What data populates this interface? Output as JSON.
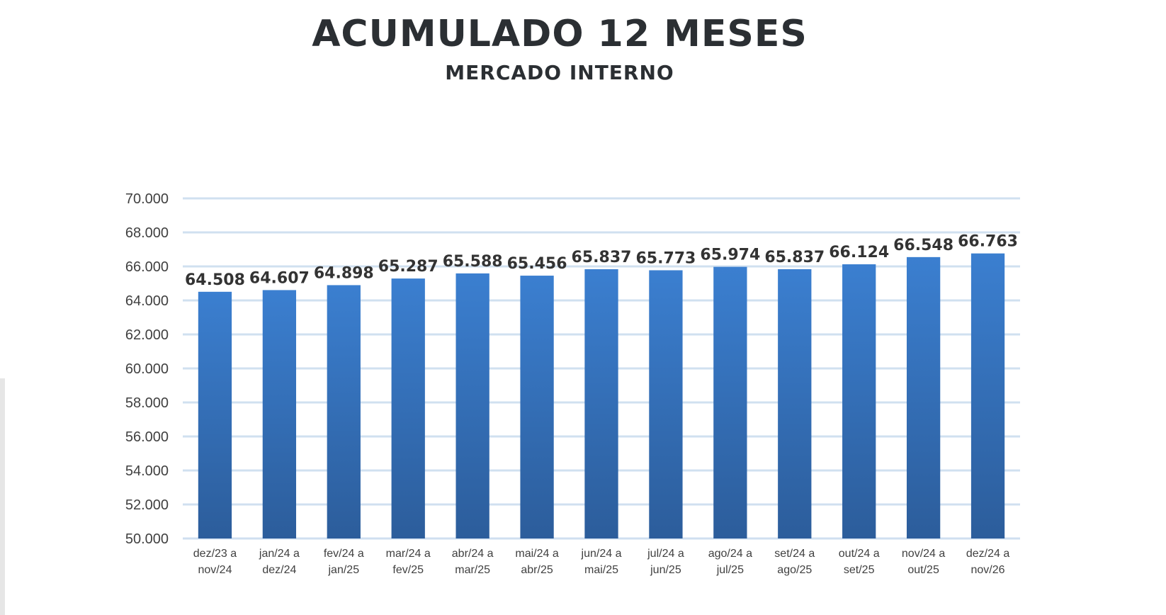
{
  "chart_data": {
    "type": "bar",
    "title": "ACUMULADO 12 MESES",
    "subtitle": "MERCADO INTERNO",
    "xlabel": "",
    "ylabel": "",
    "categories": [
      [
        "dez/23 a",
        "nov/24"
      ],
      [
        "jan/24 a",
        "dez/24"
      ],
      [
        "fev/24 a",
        "jan/25"
      ],
      [
        "mar/24 a",
        "fev/25"
      ],
      [
        "abr/24 a",
        "mar/25"
      ],
      [
        "mai/24 a",
        "abr/25"
      ],
      [
        "jun/24 a",
        "mai/25"
      ],
      [
        "jul/24 a",
        "jun/25"
      ],
      [
        "ago/24 a",
        "jul/25"
      ],
      [
        "set/24 a",
        "ago/25"
      ],
      [
        "out/24 a",
        "set/25"
      ],
      [
        "nov/24 a",
        "out/25"
      ],
      [
        "dez/24 a",
        "nov/26"
      ]
    ],
    "values": [
      64508,
      64607,
      64898,
      65287,
      65588,
      65456,
      65837,
      65773,
      65974,
      65837,
      66124,
      66548,
      66763
    ],
    "value_labels": [
      "64.508",
      "64.607",
      "64.898",
      "65.287",
      "65.588",
      "65.456",
      "65.837",
      "65.773",
      "65.974",
      "65.837",
      "66.124",
      "66.548",
      "66.763"
    ],
    "ylim": [
      50000,
      70000
    ],
    "yticks": [
      50000,
      52000,
      54000,
      56000,
      58000,
      60000,
      62000,
      64000,
      66000,
      68000,
      70000
    ],
    "ytick_labels": [
      "50.000",
      "52.000",
      "54.000",
      "56.000",
      "58.000",
      "60.000",
      "62.000",
      "64.000",
      "66.000",
      "68.000",
      "70.000"
    ],
    "grid": true,
    "legend": "none",
    "colors": {
      "bar_top": "#3b7fd0",
      "bar_bottom": "#2c5d9b",
      "grid": "#d0e0f0",
      "axis": "#cfdff0"
    }
  }
}
